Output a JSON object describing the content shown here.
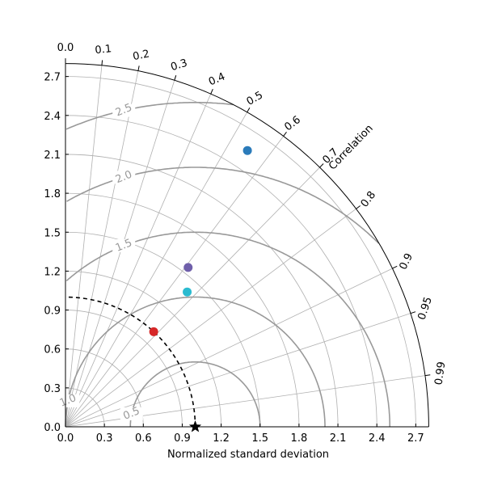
{
  "chart_data": {
    "type": "scatter",
    "subtype": "taylor-diagram",
    "xlabel": "Normalized standard deviation",
    "angular_label": "Correlation",
    "std_range": [
      0,
      2.8
    ],
    "std_ticks": [
      "0.0",
      "0.3",
      "0.6",
      "0.9",
      "1.2",
      "1.5",
      "1.8",
      "2.1",
      "2.4",
      "2.7"
    ],
    "correlation_ticks": [
      "0.0",
      "0.1",
      "0.2",
      "0.3",
      "0.4",
      "0.5",
      "0.6",
      "0.7",
      "0.8",
      "0.9",
      "0.95",
      "0.99"
    ],
    "rms_contour_labels": [
      "0.5",
      "1.0",
      "1.5",
      "2.0",
      "2.5"
    ],
    "reference": {
      "std": 1.0,
      "correlation": 1.0,
      "marker": "star"
    },
    "points": [
      {
        "std": 2.55,
        "correlation": 0.55,
        "color": "#2b7bba"
      },
      {
        "std": 1.55,
        "correlation": 0.61,
        "color": "#6f5faa"
      },
      {
        "std": 1.4,
        "correlation": 0.67,
        "color": "#2bbbd0"
      },
      {
        "std": 1.0,
        "correlation": 0.68,
        "color": "#d62728"
      }
    ],
    "grid": true
  }
}
